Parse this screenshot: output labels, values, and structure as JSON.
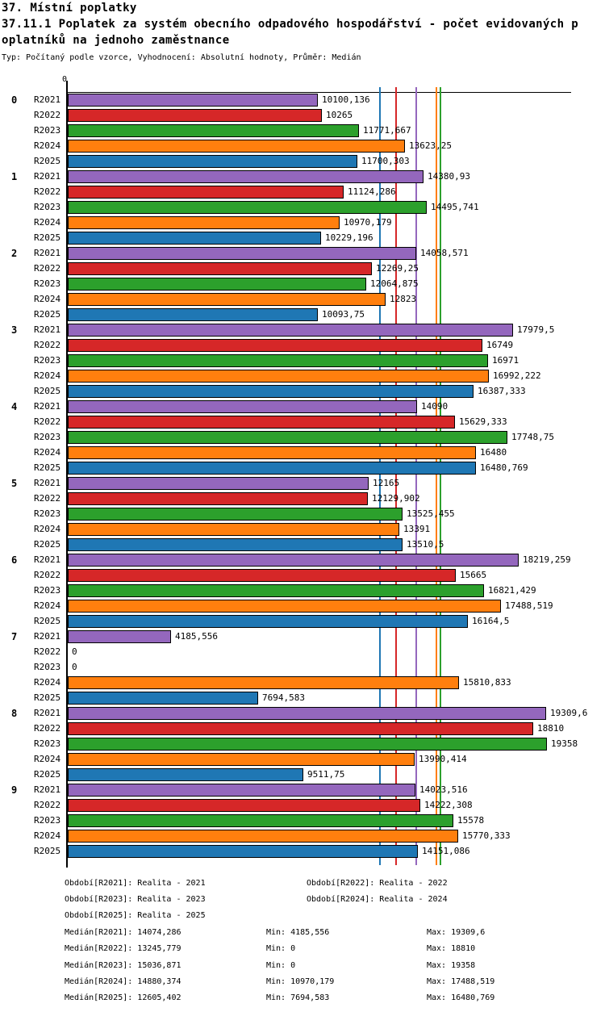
{
  "header": {
    "report_title": "37. Místní poplatky",
    "chart_title_line1": "37.11.1 Poplatek za systém obecního odpadového hospodářství - počet evidovaných p",
    "chart_title_line2": "oplatníků na jednoho zaměstnance",
    "subtitle": "Typ: Počítaný podle vzorce, Vyhodnocení: Absolutní hodnoty, Průměr: Medián"
  },
  "chart_data": {
    "type": "bar",
    "orientation": "horizontal",
    "axis_zero_label": "0",
    "xlim": [
      0,
      20000
    ],
    "grid": false,
    "series": [
      {
        "name": "R2021",
        "color": "#9467BD"
      },
      {
        "name": "R2022",
        "color": "#D62728"
      },
      {
        "name": "R2023",
        "color": "#2CA02C"
      },
      {
        "name": "R2024",
        "color": "#FF7F0E"
      },
      {
        "name": "R2025",
        "color": "#1F77B4"
      }
    ],
    "groups": [
      {
        "label": "0",
        "values": [
          10100.136,
          10265,
          11771.667,
          13623.25,
          11700.303
        ],
        "value_labels": [
          "10100,136",
          "10265",
          "11771,667",
          "13623,25",
          "11700,303"
        ]
      },
      {
        "label": "1",
        "values": [
          14380.93,
          11124.286,
          14495.741,
          10970.179,
          10229.196
        ],
        "value_labels": [
          "14380,93",
          "11124,286",
          "14495,741",
          "10970,179",
          "10229,196"
        ]
      },
      {
        "label": "2",
        "values": [
          14058.571,
          12269.25,
          12064.875,
          12823,
          10093.75
        ],
        "value_labels": [
          "14058,571",
          "12269,25",
          "12064,875",
          "12823",
          "10093,75"
        ]
      },
      {
        "label": "3",
        "values": [
          17979.5,
          16749,
          16971,
          16992.222,
          16387.333
        ],
        "value_labels": [
          "17979,5",
          "16749",
          "16971",
          "16992,222",
          "16387,333"
        ]
      },
      {
        "label": "4",
        "values": [
          14090,
          15629.333,
          17748.75,
          16480,
          16480.769
        ],
        "value_labels": [
          "14090",
          "15629,333",
          "17748,75",
          "16480",
          "16480,769"
        ]
      },
      {
        "label": "5",
        "values": [
          12165,
          12129.902,
          13525.455,
          13391,
          13510.5
        ],
        "value_labels": [
          "12165",
          "12129,902",
          "13525,455",
          "13391",
          "13510,5"
        ]
      },
      {
        "label": "6",
        "values": [
          18219.259,
          15665,
          16821.429,
          17488.519,
          16164.5
        ],
        "value_labels": [
          "18219,259",
          "15665",
          "16821,429",
          "17488,519",
          "16164,5"
        ]
      },
      {
        "label": "7",
        "values": [
          4185.556,
          0,
          0,
          15810.833,
          7694.583
        ],
        "value_labels": [
          "4185,556",
          "0",
          "0",
          "15810,833",
          "7694,583"
        ]
      },
      {
        "label": "8",
        "values": [
          19309.6,
          18810,
          19358,
          13990.414,
          9511.75
        ],
        "value_labels": [
          "19309,6",
          "18810",
          "19358",
          "13990,414",
          "9511,75"
        ]
      },
      {
        "label": "9",
        "values": [
          14023.516,
          14222.308,
          15578,
          15770.333,
          14151.086
        ],
        "value_labels": [
          "14023,516",
          "14222,308",
          "15578",
          "15770,333",
          "14151,086"
        ]
      }
    ],
    "medians": {
      "R2021": 14074.286,
      "R2022": 13245.779,
      "R2023": 15036.871,
      "R2024": 14880.374,
      "R2025": 12605.402
    }
  },
  "legend": {
    "periods": [
      {
        "row": 0,
        "col": 0,
        "text": "Období[R2021]: Realita - 2021"
      },
      {
        "row": 0,
        "col": 1,
        "text": "Období[R2022]: Realita - 2022"
      },
      {
        "row": 1,
        "col": 0,
        "text": "Období[R2023]: Realita - 2023"
      },
      {
        "row": 1,
        "col": 1,
        "text": "Období[R2024]: Realita - 2024"
      },
      {
        "row": 2,
        "col": 0,
        "text": "Období[R2025]: Realita - 2025"
      }
    ],
    "stats": [
      {
        "median": "Medián[R2021]: 14074,286",
        "min": "Min: 4185,556",
        "max": "Max: 19309,6"
      },
      {
        "median": "Medián[R2022]: 13245,779",
        "min": "Min: 0",
        "max": "Max: 18810"
      },
      {
        "median": "Medián[R2023]: 15036,871",
        "min": "Min: 0",
        "max": "Max: 19358"
      },
      {
        "median": "Medián[R2024]: 14880,374",
        "min": "Min: 10970,179",
        "max": "Max: 17488,519"
      },
      {
        "median": "Medián[R2025]: 12605,402",
        "min": "Min: 7694,583",
        "max": "Max: 16480,769"
      }
    ]
  }
}
